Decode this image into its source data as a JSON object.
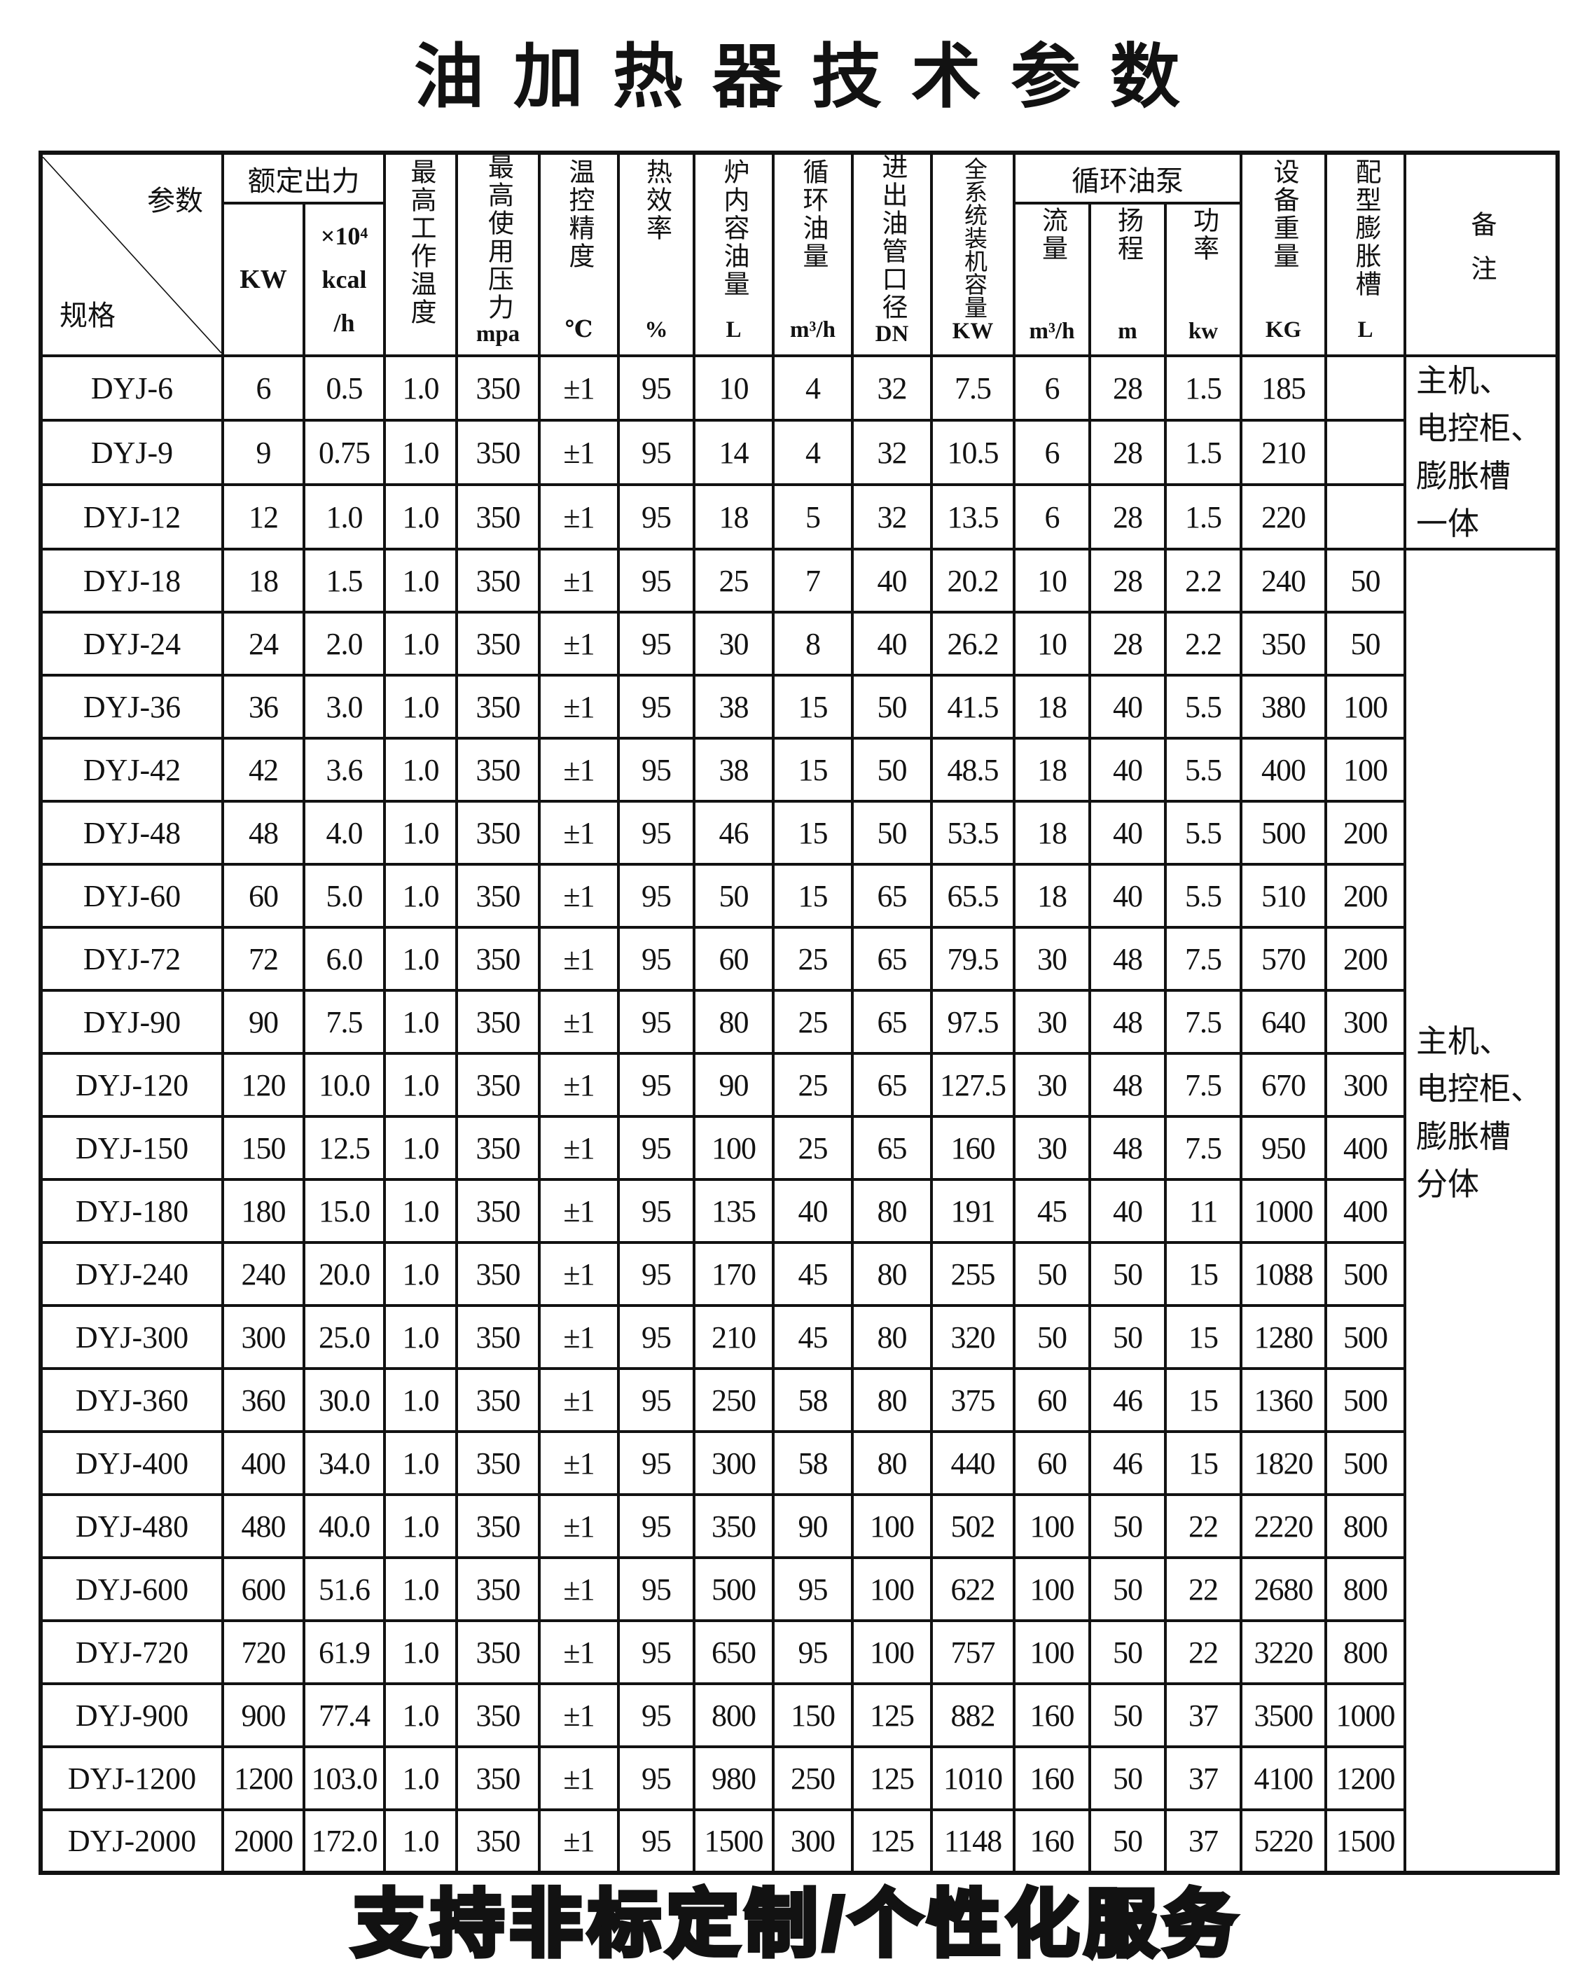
{
  "title": "油加热器技术参数",
  "banner": "支持非标定制/个性化服务",
  "table": {
    "corner": {
      "top": "参数",
      "bottom": "规格"
    },
    "groups": {
      "rated_output": "额定出力",
      "pump": "循环油泵"
    },
    "columns": [
      {
        "key": "kw",
        "label": "KW",
        "unit": ""
      },
      {
        "key": "kcal",
        "lines": [
          "×10⁴",
          "kcal",
          "/h"
        ]
      },
      {
        "key": "max-work-temp",
        "label": "最高工作温度",
        "unit": ""
      },
      {
        "key": "max-use-pressure",
        "label": "最高使用压力",
        "unit": "mpa"
      },
      {
        "key": "temp-control-precision",
        "label": "温控精度",
        "unit": "℃"
      },
      {
        "key": "thermal-efficiency",
        "label": "热效率",
        "unit": "%"
      },
      {
        "key": "furnace-oil-volume",
        "label": "炉内容油量",
        "unit": "L"
      },
      {
        "key": "circulating-oil-volume",
        "label": "循环油量",
        "unit": "m³/h"
      },
      {
        "key": "inlet-outlet-pipe-diameter",
        "label": "进出油管口径",
        "unit": "DN"
      },
      {
        "key": "system-installed-capacity",
        "label": "全系统装机容量",
        "unit": "KW"
      },
      {
        "key": "pump-flow",
        "label": "流量",
        "unit": "m³/h"
      },
      {
        "key": "pump-head",
        "label": "扬程",
        "unit": "m"
      },
      {
        "key": "pump-power",
        "label": "功率",
        "unit": "kw"
      },
      {
        "key": "equipment-weight",
        "label": "设备重量",
        "unit": "KG"
      },
      {
        "key": "expansion-tank",
        "label": "配型膨胀槽",
        "unit": "L"
      },
      {
        "key": "remark",
        "label": "备注",
        "unit": ""
      }
    ],
    "rows": [
      {
        "model": "DYJ-6",
        "values": [
          "6",
          "0.5",
          "1.0",
          "350",
          "±1",
          "95",
          "10",
          "4",
          "32",
          "7.5",
          "6",
          "28",
          "1.5",
          "185",
          ""
        ]
      },
      {
        "model": "DYJ-9",
        "values": [
          "9",
          "0.75",
          "1.0",
          "350",
          "±1",
          "95",
          "14",
          "4",
          "32",
          "10.5",
          "6",
          "28",
          "1.5",
          "210",
          ""
        ]
      },
      {
        "model": "DYJ-12",
        "values": [
          "12",
          "1.0",
          "1.0",
          "350",
          "±1",
          "95",
          "18",
          "5",
          "32",
          "13.5",
          "6",
          "28",
          "1.5",
          "220",
          ""
        ]
      },
      {
        "model": "DYJ-18",
        "values": [
          "18",
          "1.5",
          "1.0",
          "350",
          "±1",
          "95",
          "25",
          "7",
          "40",
          "20.2",
          "10",
          "28",
          "2.2",
          "240",
          "50"
        ]
      },
      {
        "model": "DYJ-24",
        "values": [
          "24",
          "2.0",
          "1.0",
          "350",
          "±1",
          "95",
          "30",
          "8",
          "40",
          "26.2",
          "10",
          "28",
          "2.2",
          "350",
          "50"
        ]
      },
      {
        "model": "DYJ-36",
        "values": [
          "36",
          "3.0",
          "1.0",
          "350",
          "±1",
          "95",
          "38",
          "15",
          "50",
          "41.5",
          "18",
          "40",
          "5.5",
          "380",
          "100"
        ]
      },
      {
        "model": "DYJ-42",
        "values": [
          "42",
          "3.6",
          "1.0",
          "350",
          "±1",
          "95",
          "38",
          "15",
          "50",
          "48.5",
          "18",
          "40",
          "5.5",
          "400",
          "100"
        ]
      },
      {
        "model": "DYJ-48",
        "values": [
          "48",
          "4.0",
          "1.0",
          "350",
          "±1",
          "95",
          "46",
          "15",
          "50",
          "53.5",
          "18",
          "40",
          "5.5",
          "500",
          "200"
        ]
      },
      {
        "model": "DYJ-60",
        "values": [
          "60",
          "5.0",
          "1.0",
          "350",
          "±1",
          "95",
          "50",
          "15",
          "65",
          "65.5",
          "18",
          "40",
          "5.5",
          "510",
          "200"
        ]
      },
      {
        "model": "DYJ-72",
        "values": [
          "72",
          "6.0",
          "1.0",
          "350",
          "±1",
          "95",
          "60",
          "25",
          "65",
          "79.5",
          "30",
          "48",
          "7.5",
          "570",
          "200"
        ]
      },
      {
        "model": "DYJ-90",
        "values": [
          "90",
          "7.5",
          "1.0",
          "350",
          "±1",
          "95",
          "80",
          "25",
          "65",
          "97.5",
          "30",
          "48",
          "7.5",
          "640",
          "300"
        ]
      },
      {
        "model": "DYJ-120",
        "values": [
          "120",
          "10.0",
          "1.0",
          "350",
          "±1",
          "95",
          "90",
          "25",
          "65",
          "127.5",
          "30",
          "48",
          "7.5",
          "670",
          "300"
        ]
      },
      {
        "model": "DYJ-150",
        "values": [
          "150",
          "12.5",
          "1.0",
          "350",
          "±1",
          "95",
          "100",
          "25",
          "65",
          "160",
          "30",
          "48",
          "7.5",
          "950",
          "400"
        ]
      },
      {
        "model": "DYJ-180",
        "values": [
          "180",
          "15.0",
          "1.0",
          "350",
          "±1",
          "95",
          "135",
          "40",
          "80",
          "191",
          "45",
          "40",
          "11",
          "1000",
          "400"
        ]
      },
      {
        "model": "DYJ-240",
        "values": [
          "240",
          "20.0",
          "1.0",
          "350",
          "±1",
          "95",
          "170",
          "45",
          "80",
          "255",
          "50",
          "50",
          "15",
          "1088",
          "500"
        ]
      },
      {
        "model": "DYJ-300",
        "values": [
          "300",
          "25.0",
          "1.0",
          "350",
          "±1",
          "95",
          "210",
          "45",
          "80",
          "320",
          "50",
          "50",
          "15",
          "1280",
          "500"
        ]
      },
      {
        "model": "DYJ-360",
        "values": [
          "360",
          "30.0",
          "1.0",
          "350",
          "±1",
          "95",
          "250",
          "58",
          "80",
          "375",
          "60",
          "46",
          "15",
          "1360",
          "500"
        ]
      },
      {
        "model": "DYJ-400",
        "values": [
          "400",
          "34.0",
          "1.0",
          "350",
          "±1",
          "95",
          "300",
          "58",
          "80",
          "440",
          "60",
          "46",
          "15",
          "1820",
          "500"
        ]
      },
      {
        "model": "DYJ-480",
        "values": [
          "480",
          "40.0",
          "1.0",
          "350",
          "±1",
          "95",
          "350",
          "90",
          "100",
          "502",
          "100",
          "50",
          "22",
          "2220",
          "800"
        ]
      },
      {
        "model": "DYJ-600",
        "values": [
          "600",
          "51.6",
          "1.0",
          "350",
          "±1",
          "95",
          "500",
          "95",
          "100",
          "622",
          "100",
          "50",
          "22",
          "2680",
          "800"
        ]
      },
      {
        "model": "DYJ-720",
        "values": [
          "720",
          "61.9",
          "1.0",
          "350",
          "±1",
          "95",
          "650",
          "95",
          "100",
          "757",
          "100",
          "50",
          "22",
          "3220",
          "800"
        ]
      },
      {
        "model": "DYJ-900",
        "values": [
          "900",
          "77.4",
          "1.0",
          "350",
          "±1",
          "95",
          "800",
          "150",
          "125",
          "882",
          "160",
          "50",
          "37",
          "3500",
          "1000"
        ]
      },
      {
        "model": "DYJ-1200",
        "values": [
          "1200",
          "103.0",
          "1.0",
          "350",
          "±1",
          "95",
          "980",
          "250",
          "125",
          "1010",
          "160",
          "50",
          "37",
          "4100",
          "1200"
        ]
      },
      {
        "model": "DYJ-2000",
        "values": [
          "2000",
          "172.0",
          "1.0",
          "350",
          "±1",
          "95",
          "1500",
          "300",
          "125",
          "1148",
          "160",
          "50",
          "37",
          "5220",
          "1500"
        ]
      }
    ],
    "remarks": [
      {
        "lines": [
          "主机、",
          "电控柜、",
          "膨胀槽",
          "一体"
        ],
        "rows": 3
      },
      {
        "lines": [
          "主机、",
          "电控柜、",
          "膨胀槽",
          "分体"
        ],
        "rows": 21
      }
    ]
  }
}
